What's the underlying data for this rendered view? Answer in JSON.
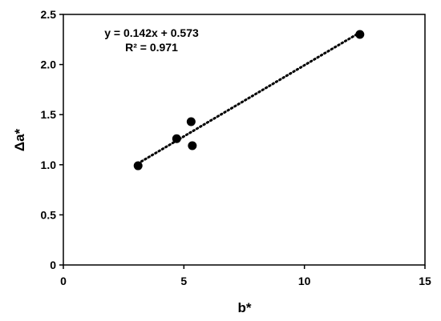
{
  "chart_data": {
    "type": "scatter",
    "xlabel": "b*",
    "ylabel": "Δa*",
    "xlim": [
      0,
      15
    ],
    "ylim": [
      0,
      2.5
    ],
    "xticks": [
      0,
      5,
      10,
      15
    ],
    "yticks": [
      0,
      0.5,
      1.0,
      1.5,
      2.0,
      2.5
    ],
    "xtick_labels": [
      "0",
      "5",
      "10",
      "15"
    ],
    "ytick_labels": [
      "0",
      "0.5",
      "1.0",
      "1.5",
      "2.0",
      "2.5"
    ],
    "grid": false,
    "points": [
      {
        "x": 3.1,
        "y": 0.99
      },
      {
        "x": 4.7,
        "y": 1.26
      },
      {
        "x": 5.3,
        "y": 1.43
      },
      {
        "x": 5.35,
        "y": 1.19
      },
      {
        "x": 12.3,
        "y": 2.3
      }
    ],
    "trendline": {
      "style": "dotted",
      "slope": 0.142,
      "intercept": 0.573,
      "x_range": [
        3.1,
        12.3
      ]
    },
    "annotations": {
      "equation": "y = 0.142x + 0.573",
      "r_squared": "R² = 0.971"
    },
    "marker_color": "#000000"
  }
}
